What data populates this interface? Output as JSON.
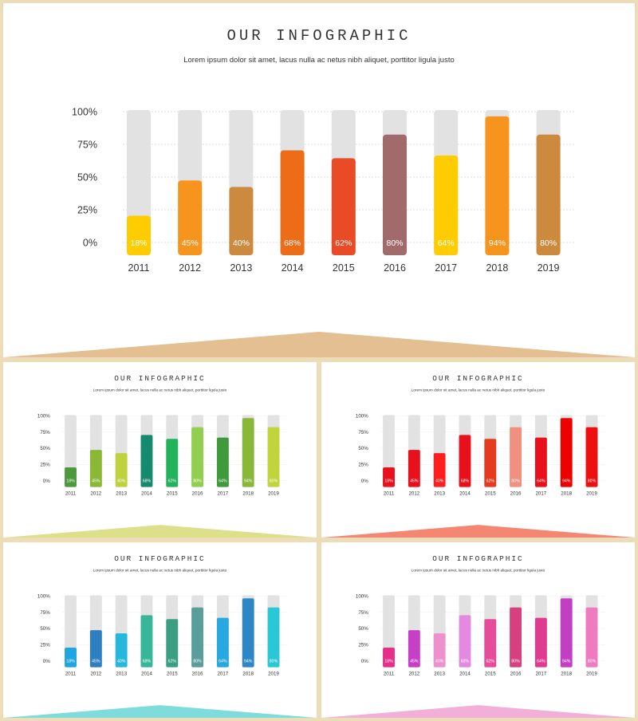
{
  "chart_data": [
    {
      "type": "bar",
      "title": "OUR INFOGRAPHIC",
      "subtitle": "Lorem ipsum dolor sit amet, lacus nulla ac netus nibh aliquet, porttitor ligula justo",
      "categories": [
        "2011",
        "2012",
        "2013",
        "2014",
        "2015",
        "2016",
        "2017",
        "2018",
        "2019"
      ],
      "values": [
        18,
        45,
        40,
        68,
        62,
        80,
        64,
        94,
        80
      ],
      "value_labels": [
        "18%",
        "45%",
        "40%",
        "68%",
        "62%",
        "80%",
        "64%",
        "94%",
        "80%"
      ],
      "yticks": [
        "0%",
        "25%",
        "50%",
        "75%",
        "100%"
      ],
      "ylim": [
        0,
        100
      ],
      "grid": true,
      "track_color": "#e2e2e2",
      "colors": [
        "#ffcc00",
        "#f7941d",
        "#cc8a3e",
        "#ec6c18",
        "#e84b25",
        "#a26b6b",
        "#ffcc00",
        "#f7941d",
        "#cc8a3e"
      ],
      "accent": "#e3bf91"
    },
    {
      "type": "bar",
      "title": "OUR INFOGRAPHIC",
      "subtitle": "Lorem ipsum dolor sit amet, lacus nulla ac netus nibh aliquet, porttitor ligula justo",
      "categories": [
        "2011",
        "2012",
        "2013",
        "2014",
        "2015",
        "2016",
        "2017",
        "2018",
        "2019"
      ],
      "values": [
        18,
        45,
        40,
        68,
        62,
        80,
        64,
        94,
        80
      ],
      "value_labels": [
        "18%",
        "45%",
        "40%",
        "68%",
        "62%",
        "80%",
        "64%",
        "94%",
        "80%"
      ],
      "yticks": [
        "0%",
        "25%",
        "50%",
        "75%",
        "100%"
      ],
      "ylim": [
        0,
        100
      ],
      "grid": true,
      "track_color": "#e2e2e2",
      "colors": [
        "#4c9a3d",
        "#8ab836",
        "#bfd13e",
        "#158a6e",
        "#22b25a",
        "#90cf4f",
        "#3f9a3b",
        "#88b83a",
        "#c1d43b"
      ],
      "accent": "#dde08a"
    },
    {
      "type": "bar",
      "title": "OUR INFOGRAPHIC",
      "subtitle": "Lorem ipsum dolor sit amet, lacus nulla ac netus nibh aliquet, porttitor ligula justo",
      "categories": [
        "2011",
        "2012",
        "2013",
        "2014",
        "2015",
        "2016",
        "2017",
        "2018",
        "2019"
      ],
      "values": [
        18,
        45,
        40,
        68,
        62,
        80,
        64,
        94,
        80
      ],
      "value_labels": [
        "18%",
        "45%",
        "40%",
        "68%",
        "62%",
        "80%",
        "64%",
        "94%",
        "80%"
      ],
      "yticks": [
        "0%",
        "25%",
        "50%",
        "75%",
        "100%"
      ],
      "ylim": [
        0,
        100
      ],
      "grid": true,
      "track_color": "#e2e2e2",
      "colors": [
        "#e8101a",
        "#e8101a",
        "#ff1e1e",
        "#e8101a",
        "#e53a1e",
        "#f1907e",
        "#e8101a",
        "#ef0000",
        "#ee1010"
      ],
      "accent": "#f58672"
    },
    {
      "type": "bar",
      "title": "OUR INFOGRAPHIC",
      "subtitle": "Lorem ipsum dolor sit amet, lacus nulla ac netus nibh aliquet, porttitor ligula justo",
      "categories": [
        "2011",
        "2012",
        "2013",
        "2014",
        "2015",
        "2016",
        "2017",
        "2018",
        "2019"
      ],
      "values": [
        18,
        45,
        40,
        68,
        62,
        80,
        64,
        94,
        80
      ],
      "value_labels": [
        "18%",
        "45%",
        "40%",
        "68%",
        "62%",
        "80%",
        "64%",
        "94%",
        "80%"
      ],
      "yticks": [
        "0%",
        "25%",
        "50%",
        "75%",
        "100%"
      ],
      "ylim": [
        0,
        100
      ],
      "grid": true,
      "track_color": "#e2e2e2",
      "colors": [
        "#1ea6e0",
        "#2d7fc1",
        "#27b7dd",
        "#38b699",
        "#3a9e82",
        "#5a9e9c",
        "#28a8e0",
        "#2d86c6",
        "#2ac7d6"
      ],
      "accent": "#7fdcdc"
    },
    {
      "type": "bar",
      "title": "OUR INFOGRAPHIC",
      "subtitle": "Lorem ipsum dolor sit amet, lacus nulla ac netus nibh aliquet, porttitor ligula justo",
      "categories": [
        "2011",
        "2012",
        "2013",
        "2014",
        "2015",
        "2016",
        "2017",
        "2018",
        "2019"
      ],
      "values": [
        18,
        45,
        40,
        68,
        62,
        80,
        64,
        94,
        80
      ],
      "value_labels": [
        "18%",
        "45%",
        "40%",
        "68%",
        "62%",
        "80%",
        "64%",
        "94%",
        "80%"
      ],
      "yticks": [
        "0%",
        "25%",
        "50%",
        "75%",
        "100%"
      ],
      "ylim": [
        0,
        100
      ],
      "grid": true,
      "track_color": "#e2e2e2",
      "colors": [
        "#e52f8a",
        "#c83fc7",
        "#ee8fce",
        "#e38ae0",
        "#e54d9b",
        "#d6407f",
        "#e03c8f",
        "#c23fc4",
        "#ef7bbf"
      ],
      "accent": "#f2b0d8"
    }
  ]
}
